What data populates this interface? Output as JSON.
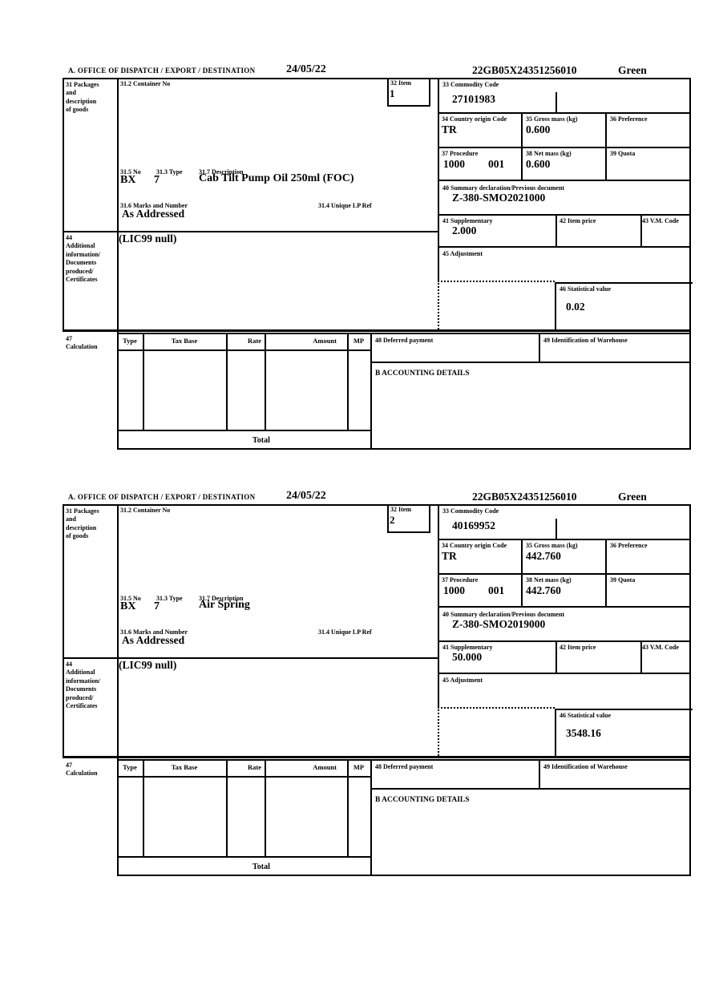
{
  "labels": {
    "office_header": "A.  OFFICE OF DISPATCH / EXPORT / DESTINATION",
    "box31": "31 Packages\nand\ndescription\nof goods",
    "box31_2": "31.2 Container No",
    "box32": "32 Item",
    "box33": "33 Commodity Code",
    "box34": "34 Country origin Code",
    "box35": "35 Gross mass (kg)",
    "box36": "36 Preference",
    "box37": "37 Procedure",
    "box38": "38 Net mass (kg)",
    "box39": "39 Quota",
    "box40": "40 Summary declaration/Previous document",
    "box31_5": "31.5 No",
    "box31_3": "31.3 Type",
    "box31_7": "31.7 Description",
    "box31_6": "31.6 Marks and Number",
    "box31_4": "31.4 Unique LP Ref",
    "box41": "41 Supplementary",
    "box42": "42 Item price",
    "box43": "43 V.M. Code",
    "box44": "44\nAdditional\ninformation/\nDocuments\nproduced/\nCertificates",
    "box45": "45 Adjustment",
    "box46": "46 Statistical value",
    "box47": "47\nCalculation",
    "calc_type": "Type",
    "calc_tax_base": "Tax Base",
    "calc_rate": "Rate",
    "calc_amount": "Amount",
    "calc_mp": "MP",
    "box48": "48 Deferred payment",
    "box49": "49 Identification of Warehouse",
    "accounting": "B ACCOUNTING DETAILS",
    "total": "Total"
  },
  "sections": [
    {
      "date": "24/05/22",
      "reference": "22GB05X24351256010",
      "routing": "Green",
      "item_number": "1",
      "commodity_code": "27101983",
      "country_origin_code": "TR",
      "gross_mass_kg": "0.600",
      "preference": "",
      "procedure": "1000",
      "procedure_extension": "001",
      "net_mass_kg": "0.600",
      "quota": "",
      "previous_document": "Z-380-SMO2021000",
      "supplementary": "2.000",
      "item_price": "",
      "vm_code": "",
      "package_no": "BX",
      "package_type": "7",
      "goods_description": "Cab Tilt Pump Oil 250ml (FOC)",
      "marks_and_number": "As Addressed",
      "unique_lp_ref": "",
      "additional_information": "(LIC99 null)",
      "adjustment": "",
      "statistical_value": "0.02",
      "deferred_payment": "",
      "warehouse_id": ""
    },
    {
      "date": "24/05/22",
      "reference": "22GB05X24351256010",
      "routing": "Green",
      "item_number": "2",
      "commodity_code": "40169952",
      "country_origin_code": "TR",
      "gross_mass_kg": "442.760",
      "preference": "",
      "procedure": "1000",
      "procedure_extension": "001",
      "net_mass_kg": "442.760",
      "quota": "",
      "previous_document": "Z-380-SMO2019000",
      "supplementary": "50.000",
      "item_price": "",
      "vm_code": "",
      "package_no": "BX",
      "package_type": "7",
      "goods_description": "Air Spring",
      "marks_and_number": "As Addressed",
      "unique_lp_ref": "",
      "additional_information": "(LIC99 null)",
      "adjustment": "",
      "statistical_value": "3548.16",
      "deferred_payment": "",
      "warehouse_id": ""
    }
  ]
}
